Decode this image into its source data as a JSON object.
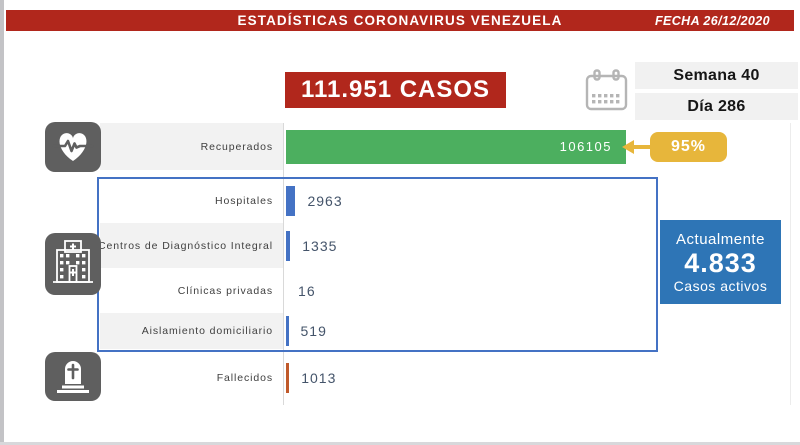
{
  "header": {
    "title": "ESTADÍSTICAS CORONAVIRUS VENEZUELA",
    "date_label": "FECHA 26/12/2020"
  },
  "summary": {
    "total_cases": "111.951 CASOS",
    "week_label": "Semana 40",
    "day_label": "Día 286"
  },
  "chart_data": {
    "type": "bar",
    "orientation": "horizontal",
    "title": "111.951 CASOS",
    "categories": [
      "Recuperados",
      "Hospitales",
      "Centros de Diagnóstico Integral",
      "Clínicas privadas",
      "Aislamiento domiciliario",
      "Fallecidos"
    ],
    "values": [
      106105,
      2963,
      1335,
      16,
      519,
      1013
    ],
    "max_value": 106105,
    "legend": "none",
    "grid": "off",
    "rows": [
      {
        "label": "Recuperados",
        "value": 106105,
        "display": "106105",
        "bar_color": "#4caf5f",
        "annotation": "95%"
      },
      {
        "label": "Hospitales",
        "value": 2963,
        "display": "2963",
        "bar_color": "#4472c4"
      },
      {
        "label": "Centros de Diagnóstico Integral",
        "value": 1335,
        "display": "1335",
        "bar_color": "#4472c4"
      },
      {
        "label": "Clínicas privadas",
        "value": 16,
        "display": "16",
        "bar_color": "#4472c4"
      },
      {
        "label": "Aislamiento domiciliario",
        "value": 519,
        "display": "519",
        "bar_color": "#4472c4"
      },
      {
        "label": "Fallecidos",
        "value": 1013,
        "display": "1013",
        "bar_color": "#c0592a"
      }
    ]
  },
  "active_box": {
    "line1": "Actualmente",
    "value": "4.833",
    "line2": "Casos activos"
  },
  "icons": {
    "recovered": "heart-pulse-icon",
    "medical": "hospital-icon",
    "deceased": "tombstone-icon",
    "date": "calendar-icon"
  },
  "colors": {
    "banner_red": "#b1271c",
    "bar_green": "#4caf5f",
    "bar_blue": "#4472c4",
    "bar_orange": "#c0592a",
    "badge_yellow": "#e7b63b",
    "active_blue": "#2e75b6",
    "icon_gray": "#5f5f5f",
    "row_stripe_gray": "#f2f2f2"
  }
}
